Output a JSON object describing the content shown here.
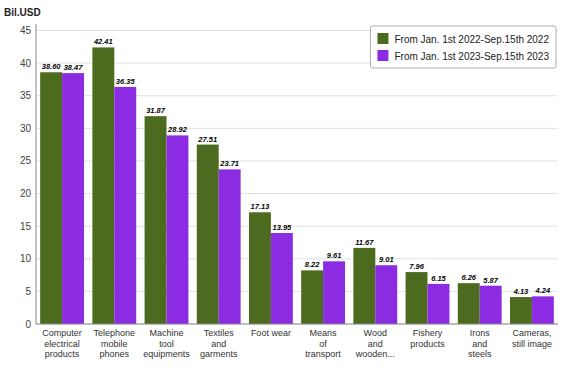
{
  "chart_data": {
    "type": "bar",
    "ylabel": "Bil.USD",
    "categories": [
      "Computer\nelectrical\nproducts",
      "Telephone\nmobile\nphones",
      "Machine\ntool\nequipments",
      "Textiles\nand\ngarments",
      "Foot wear",
      "Means\nof\ntransport",
      "Wood\nand\nwooden...",
      "Fishery\nproducts",
      "Irons\nand\nsteels",
      "Cameras,\nstill image"
    ],
    "series": [
      {
        "name": "From Jan. 1st 2022-Sep.15th 2022",
        "color": "#4C6B1F",
        "values": [
          38.6,
          42.41,
          31.87,
          27.51,
          17.13,
          8.22,
          11.67,
          7.96,
          6.26,
          4.13
        ],
        "value_labels": [
          "38.60",
          "42.41",
          "31.87",
          "27.51",
          "17.13",
          "8.22",
          "11.67",
          "7.96",
          "6.26",
          "4.13"
        ]
      },
      {
        "name": "From Jan. 1st 2023-Sep.15th 2023",
        "color": "#8B2BE2",
        "values": [
          38.47,
          36.35,
          28.92,
          23.71,
          13.95,
          9.61,
          9.01,
          6.15,
          5.87,
          4.24
        ],
        "value_labels": [
          "38.47",
          "36.35",
          "28.92",
          "23.71",
          "13.95",
          "9.61",
          "9.01",
          "6.15",
          "5.87",
          "4.24"
        ]
      }
    ],
    "ylim": [
      0,
      46
    ],
    "yticks": [
      0,
      5,
      10,
      15,
      20,
      25,
      30,
      35,
      40,
      45
    ],
    "grid": true,
    "legend": "upper right",
    "data_labels": true
  }
}
